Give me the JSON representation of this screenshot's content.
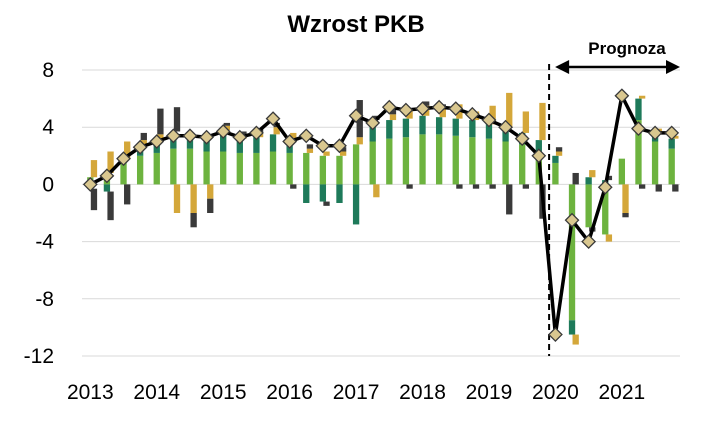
{
  "chart_data": {
    "type": "bar",
    "title": "Wzrost PKB",
    "annotation": "Prognoza",
    "xlabel": "",
    "ylabel": "",
    "ylim": [
      -12,
      8
    ],
    "yticks": [
      8,
      4,
      0,
      -4,
      -8,
      -12
    ],
    "ytick_labels": [
      "8",
      "4",
      "0",
      "-4",
      "-8",
      "-12"
    ],
    "year_labels": [
      "2013",
      "2014",
      "2015",
      "2016",
      "2017",
      "2018",
      "2019",
      "2020",
      "2021"
    ],
    "grid": true,
    "forecast_start_index": 28,
    "categories": [
      "2013Q1",
      "2013Q2",
      "2013Q3",
      "2013Q4",
      "2014Q1",
      "2014Q2",
      "2014Q3",
      "2014Q4",
      "2015Q1",
      "2015Q2",
      "2015Q3",
      "2015Q4",
      "2016Q1",
      "2016Q2",
      "2016Q3",
      "2016Q4",
      "2017Q1",
      "2017Q2",
      "2017Q3",
      "2017Q4",
      "2018Q1",
      "2018Q2",
      "2018Q3",
      "2018Q4",
      "2019Q1",
      "2019Q2",
      "2019Q3",
      "2019Q4",
      "2020Q1",
      "2020Q2",
      "2020Q3",
      "2020Q4",
      "2021Q1",
      "2021Q2",
      "2021Q3",
      "2021Q4"
    ],
    "colors": {
      "series1": "#6db33f",
      "series2": "#1e7a5a",
      "series3": "#d4a73a",
      "series4": "#3a3a3a",
      "line": "#000000",
      "marker_fill": "#d9c78f",
      "grid": "#d9d9d9"
    },
    "series": [
      {
        "name": "series1",
        "values": [
          0.5,
          0.8,
          1.5,
          2.0,
          2.2,
          2.5,
          2.5,
          2.3,
          2.3,
          2.2,
          2.2,
          2.3,
          2.2,
          2.2,
          2.0,
          2.0,
          2.8,
          3.0,
          3.2,
          3.3,
          3.5,
          3.5,
          3.4,
          3.3,
          3.2,
          3.0,
          2.8,
          2.3,
          1.5,
          -9.5,
          -3.0,
          -3.5,
          1.8,
          4.5,
          3.0,
          2.5
        ]
      },
      {
        "name": "series2",
        "values": [
          -0.3,
          -0.5,
          0.3,
          0.6,
          1.0,
          1.2,
          1.0,
          1.2,
          1.5,
          1.0,
          1.1,
          1.2,
          1.0,
          -1.3,
          -1.2,
          -1.3,
          -2.8,
          1.5,
          1.3,
          1.3,
          1.3,
          1.2,
          1.2,
          1.2,
          1.0,
          1.0,
          0.8,
          0.8,
          0.5,
          -1.0,
          0.5,
          0.3,
          0,
          1.5,
          0.7,
          0.7
        ]
      },
      {
        "name": "series3",
        "values": [
          1.2,
          1.5,
          1.2,
          0.5,
          0.3,
          -2.0,
          -2.0,
          -1.0,
          0.3,
          0.3,
          0.3,
          0.5,
          0.4,
          0.3,
          0.3,
          0.3,
          0.5,
          -0.9,
          0.4,
          0.7,
          0.7,
          0.6,
          1.0,
          0.6,
          1.3,
          2.4,
          1.5,
          2.6,
          0.3,
          -0.7,
          0.5,
          -0.5,
          -2.0,
          0.2,
          0.2,
          0.2
        ]
      },
      {
        "name": "series4",
        "values": [
          -1.5,
          -2.0,
          -1.4,
          0.5,
          1.8,
          1.7,
          -1.0,
          -1.0,
          0.2,
          0.2,
          0.3,
          0.3,
          -0.3,
          0.3,
          -0.3,
          0.3,
          2.6,
          0.3,
          0.3,
          -0.3,
          0.3,
          0.3,
          -0.3,
          -0.3,
          -0.3,
          -2.1,
          -0.3,
          -2.4,
          0.3,
          0.8,
          -0.3,
          0.3,
          -0.3,
          -0.3,
          -0.5,
          -0.5
        ]
      }
    ],
    "line_series": {
      "name": "Wzrost PKB",
      "values": [
        0.0,
        0.6,
        1.8,
        2.6,
        3.0,
        3.4,
        3.4,
        3.3,
        3.7,
        3.3,
        3.6,
        4.6,
        3.0,
        3.4,
        2.7,
        2.7,
        4.8,
        4.3,
        5.4,
        5.2,
        5.3,
        5.4,
        5.3,
        4.9,
        4.5,
        4.0,
        3.2,
        2.0,
        -10.5,
        -2.5,
        -4.0,
        -0.2,
        6.2,
        3.9,
        3.6,
        3.6
      ]
    }
  }
}
